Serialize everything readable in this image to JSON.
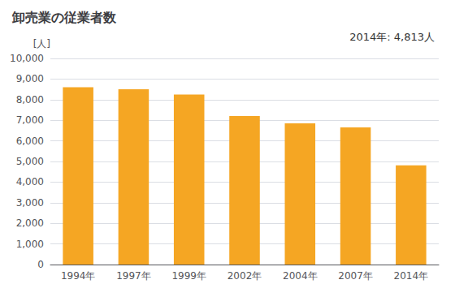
{
  "chart_data": {
    "type": "bar",
    "title": "卸売業の従業者数",
    "ylabel": "[人]",
    "annotation": "2014年: 4,813人",
    "categories": [
      "1994年",
      "1997年",
      "1999年",
      "2002年",
      "2004年",
      "2007年",
      "2014年"
    ],
    "values": [
      8600,
      8500,
      8250,
      7200,
      6850,
      6650,
      4813
    ],
    "color": "#F5A623",
    "ylim": [
      0,
      10000
    ],
    "yticks": [
      0,
      {
        "value": 1000,
        "label": "1,000"
      },
      {
        "value": 2000,
        "label": "2,000"
      },
      {
        "value": 3000,
        "label": "3,000"
      },
      {
        "value": 4000,
        "label": "4,000"
      },
      {
        "value": 5000,
        "label": "5,000"
      },
      {
        "value": 6000,
        "label": "6,000"
      },
      {
        "value": 7000,
        "label": "7,000"
      },
      {
        "value": 8000,
        "label": "8,000"
      },
      {
        "value": 9000,
        "label": "9,000"
      },
      {
        "value": 10000,
        "label": "10,000"
      }
    ],
    "grid": true
  }
}
